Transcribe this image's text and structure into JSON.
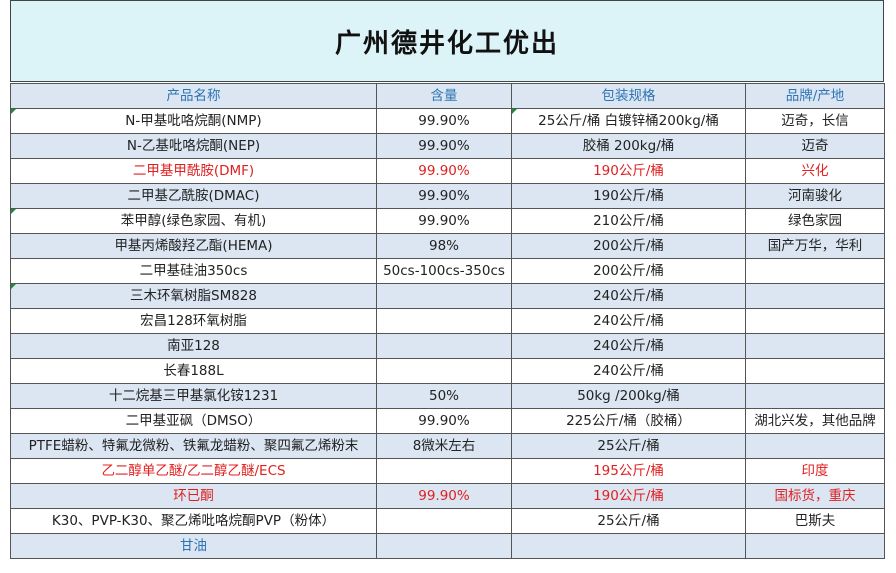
{
  "title": "广州德井化工优出",
  "header": [
    "产品名称",
    "含量",
    "包装规格",
    "品牌/产地"
  ],
  "rows": [
    {
      "name": "N-甲基吡咯烷酮(NMP)",
      "content": "99.90%",
      "pack": "25公斤/桶  白镀锌桶200kg/桶",
      "brand": "迈奇，长信",
      "red": false
    },
    {
      "name": "N-乙基吡咯烷酮(NEP)",
      "content": "99.90%",
      "pack": "胶桶  200kg/桶",
      "brand": "迈奇",
      "red": false
    },
    {
      "name": "二甲基甲酰胺(DMF)",
      "content": "99.90%",
      "pack": "190公斤/桶",
      "brand": "兴化",
      "red": true
    },
    {
      "name": "二甲基乙酰胺(DMAC)",
      "content": "99.90%",
      "pack": "190公斤/桶",
      "brand": "河南骏化",
      "red": false
    },
    {
      "name": "苯甲醇(绿色家园、有机)",
      "content": "99.90%",
      "pack": "210公斤/桶",
      "brand": "绿色家园",
      "red": false
    },
    {
      "name": "甲基丙烯酸羟乙酯(HEMA)",
      "content": "98%",
      "pack": "200公斤/桶",
      "brand": "国产万华，华利",
      "red": false
    },
    {
      "name": "二甲基硅油350cs",
      "content": "50cs-100cs-350cs",
      "pack": "200公斤/桶",
      "brand": "",
      "red": false
    },
    {
      "name": "三木环氧树脂SM828",
      "content": "",
      "pack": "240公斤/桶",
      "brand": "",
      "red": false
    },
    {
      "name": "宏昌128环氧树脂",
      "content": "",
      "pack": "240公斤/桶",
      "brand": "",
      "red": false
    },
    {
      "name": "南亚128",
      "content": "",
      "pack": "240公斤/桶",
      "brand": "",
      "red": false
    },
    {
      "name": "长春188L",
      "content": "",
      "pack": "240公斤/桶",
      "brand": "",
      "red": false
    },
    {
      "name": "十二烷基三甲基氯化铵1231",
      "content": "50%",
      "pack": "50kg /200kg/桶",
      "brand": "",
      "red": false
    },
    {
      "name": "二甲基亚砜（DMSO）",
      "content": "99.90%",
      "pack": "225公斤/桶（胶桶）",
      "brand": "湖北兴发，其他品牌",
      "red": false
    },
    {
      "name": "PTFE蜡粉、特氟龙微粉、铁氟龙蜡粉、聚四氟乙烯粉末",
      "content": "8微米左右",
      "pack": "25公斤/桶",
      "brand": "",
      "red": false
    },
    {
      "name": "乙二醇单乙醚/乙二醇乙醚/ECS",
      "content": "",
      "pack": "195公斤/桶",
      "brand": "印度",
      "red": true
    },
    {
      "name": "环已酮",
      "content": "99.90%",
      "pack": "190公斤/桶",
      "brand": "国标货，重庆",
      "red": true
    },
    {
      "name": "K30、PVP-K30、聚乙烯吡咯烷酮PVP（粉体）",
      "content": "",
      "pack": "25公斤/桶",
      "brand": "巴斯夫",
      "red": false
    },
    {
      "name": "甘油",
      "content": "",
      "pack": "",
      "brand": "",
      "red": false,
      "blue": true
    }
  ],
  "colors": {
    "header_text": "#2e74b5",
    "title_bg": "#dcf3f8",
    "shade_bg": "#dbe6f2",
    "red_text": "#e02020",
    "corner_marker": "#1e8a3a"
  }
}
